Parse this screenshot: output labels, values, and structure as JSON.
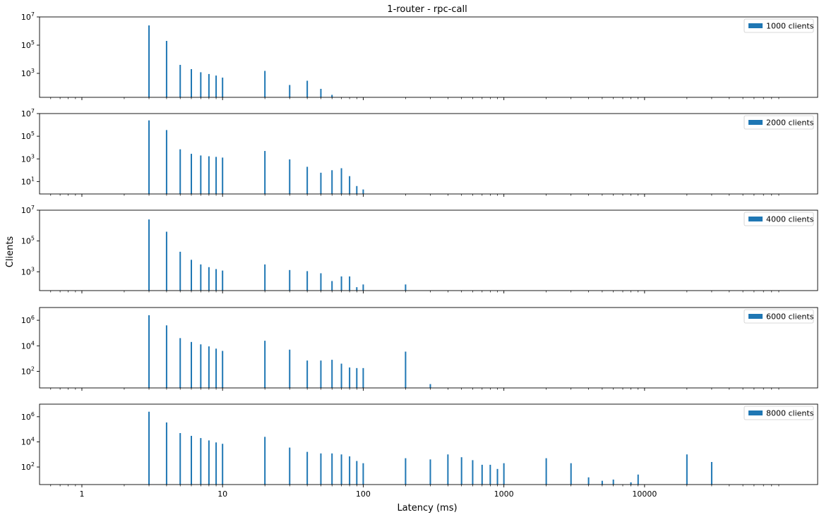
{
  "chart_data": {
    "type": "bar",
    "title": "1-router - rpc-call",
    "xlabel": "Latency (ms)",
    "ylabel": "Clients",
    "xscale": "log",
    "yscale": "log",
    "xlim": [
      0.5,
      170000
    ],
    "x_tick_labels": [
      {
        "value": 1,
        "label": "1"
      },
      {
        "value": 10,
        "label": "10"
      },
      {
        "value": 100,
        "label": "100"
      },
      {
        "value": 1000,
        "label": "1000"
      },
      {
        "value": 10000,
        "label": "10000"
      }
    ],
    "legend_position": "top-right",
    "bar_color": "#1f77b4",
    "subplots": [
      {
        "series": "1000 clients",
        "ylim": [
          20,
          10000000
        ],
        "y_ticks": [
          {
            "exp": "3"
          },
          {
            "exp": "5"
          },
          {
            "exp": "7"
          }
        ],
        "x": [
          3,
          4,
          5,
          6,
          7,
          8,
          9,
          10,
          20,
          30,
          40,
          50,
          60
        ],
        "values": [
          2500000,
          200000,
          4000,
          2000,
          1200,
          900,
          700,
          500,
          1500,
          150,
          300,
          80,
          30
        ]
      },
      {
        "series": "2000 clients",
        "ylim": [
          0.8,
          10000000
        ],
        "y_ticks": [
          {
            "exp": "1"
          },
          {
            "exp": "3"
          },
          {
            "exp": "5"
          },
          {
            "exp": "7"
          }
        ],
        "x": [
          3,
          4,
          5,
          6,
          7,
          8,
          9,
          10,
          20,
          30,
          40,
          50,
          60,
          70,
          80,
          90,
          100
        ],
        "values": [
          2500000,
          350000,
          7000,
          2800,
          2000,
          1700,
          1500,
          1300,
          5000,
          900,
          200,
          60,
          100,
          150,
          30,
          4,
          2
        ]
      },
      {
        "series": "4000 clients",
        "ylim": [
          60,
          10000000
        ],
        "y_ticks": [
          {
            "exp": "3"
          },
          {
            "exp": "5"
          },
          {
            "exp": "7"
          }
        ],
        "x": [
          3,
          4,
          5,
          6,
          7,
          8,
          9,
          10,
          20,
          30,
          40,
          50,
          60,
          70,
          80,
          90,
          100,
          200
        ],
        "values": [
          2500000,
          400000,
          20000,
          6000,
          3000,
          2000,
          1500,
          1200,
          3000,
          1300,
          1100,
          800,
          250,
          500,
          500,
          100,
          150,
          150
        ]
      },
      {
        "series": "6000 clients",
        "ylim": [
          5,
          10000000
        ],
        "y_ticks": [
          {
            "exp": "2"
          },
          {
            "exp": "4"
          },
          {
            "exp": "6"
          }
        ],
        "x": [
          3,
          4,
          5,
          6,
          7,
          8,
          9,
          10,
          20,
          30,
          40,
          50,
          60,
          70,
          80,
          90,
          100,
          200,
          300
        ],
        "values": [
          2500000,
          400000,
          40000,
          20000,
          13000,
          9000,
          6000,
          4000,
          25000,
          5000,
          700,
          700,
          800,
          400,
          200,
          180,
          180,
          3500,
          10
        ]
      },
      {
        "series": "8000 clients",
        "ylim": [
          4,
          10000000
        ],
        "y_ticks": [
          {
            "exp": "2"
          },
          {
            "exp": "4"
          },
          {
            "exp": "6"
          }
        ],
        "x": [
          3,
          4,
          5,
          6,
          7,
          8,
          9,
          10,
          20,
          30,
          40,
          50,
          60,
          70,
          80,
          90,
          100,
          200,
          300,
          400,
          500,
          600,
          700,
          800,
          900,
          1000,
          2000,
          3000,
          4000,
          5000,
          6000,
          8000,
          9000,
          20000,
          30000
        ],
        "values": [
          2500000,
          350000,
          50000,
          30000,
          20000,
          13000,
          9000,
          7000,
          25000,
          3500,
          1600,
          1200,
          1200,
          1000,
          700,
          300,
          200,
          500,
          400,
          1000,
          600,
          350,
          150,
          150,
          70,
          200,
          500,
          200,
          15,
          8,
          10,
          6,
          25,
          1000,
          250
        ]
      }
    ]
  }
}
